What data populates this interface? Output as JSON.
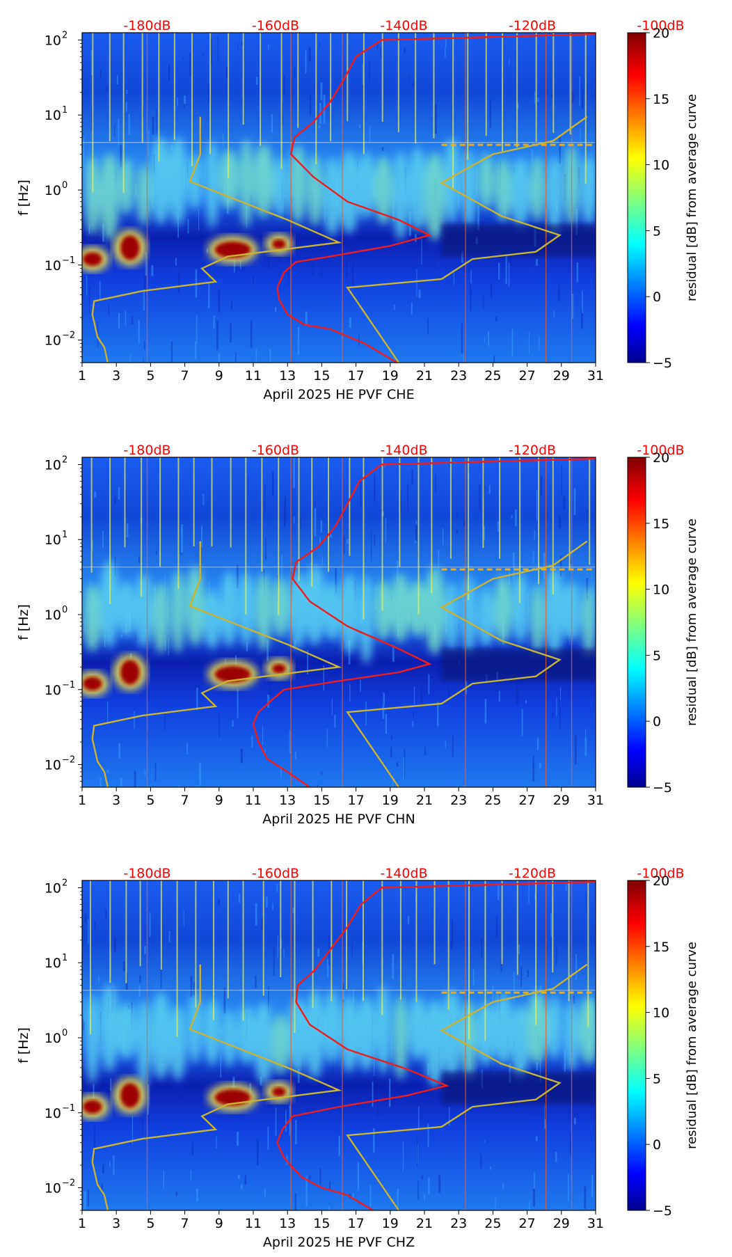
{
  "chart_data": [
    {
      "type": "heatmap",
      "panel": "CHE",
      "xlabel": "April 2025 HE PVF  CHE",
      "ylabel": "f [Hz]",
      "x_ticks": [
        "1",
        "3",
        "5",
        "7",
        "9",
        "11",
        "13",
        "15",
        "17",
        "19",
        "21",
        "23",
        "25",
        "27",
        "29",
        "31"
      ],
      "x_range": [
        1,
        31
      ],
      "y_range_hz": [
        0.005,
        125
      ],
      "y_ticks": [
        {
          "base": "10",
          "exp": "2"
        },
        {
          "base": "10",
          "exp": "1"
        },
        {
          "base": "10",
          "exp": "0"
        },
        {
          "base": "10",
          "exp": "−1"
        },
        {
          "base": "10",
          "exp": "−2"
        }
      ],
      "top_axis_labels": [
        "-180dB",
        "-160dB",
        "-140dB",
        "-120dB",
        "-100dB"
      ],
      "colorbar": {
        "label": "residual [dB] from average curve",
        "min": -5,
        "max": 20,
        "ticks": [
          "20",
          "15",
          "10",
          "5",
          "0",
          "−5"
        ]
      },
      "curves": [
        {
          "name": "average",
          "color": "#ee1c1c",
          "points": [
            [
              19.4,
              0.005
            ],
            [
              17.5,
              0.009
            ],
            [
              15.5,
              0.014
            ],
            [
              14.0,
              0.016
            ],
            [
              13.0,
              0.022
            ],
            [
              12.5,
              0.035
            ],
            [
              12.4,
              0.05
            ],
            [
              12.8,
              0.08
            ],
            [
              13.5,
              0.11
            ],
            [
              15.5,
              0.13
            ],
            [
              19.0,
              0.18
            ],
            [
              21.3,
              0.25
            ],
            [
              19.5,
              0.4
            ],
            [
              16.5,
              0.7
            ],
            [
              14.5,
              1.5
            ],
            [
              13.2,
              3.0
            ],
            [
              13.4,
              5.0
            ],
            [
              14.5,
              8.0
            ],
            [
              15.5,
              15.0
            ],
            [
              16.3,
              30.0
            ],
            [
              17.0,
              60.0
            ],
            [
              18.5,
              100.0
            ],
            [
              31.0,
              120.0
            ]
          ]
        },
        {
          "name": "noise-model",
          "color": "#c8b432",
          "points": [
            [
              2.5,
              0.005
            ],
            [
              2.3,
              0.008
            ],
            [
              1.9,
              0.011
            ],
            [
              1.6,
              0.022
            ],
            [
              1.7,
              0.033
            ],
            [
              4.5,
              0.045
            ],
            [
              8.8,
              0.06
            ],
            [
              8.0,
              0.09
            ],
            [
              9.5,
              0.13
            ],
            [
              16.0,
              0.2
            ],
            [
              13.0,
              0.4
            ],
            [
              7.3,
              1.3
            ],
            [
              7.9,
              3.0
            ],
            [
              7.9,
              9.5
            ],
            [
              19.5,
              0.005
            ],
            [
              16.5,
              0.05
            ],
            [
              22.0,
              0.065
            ],
            [
              23.8,
              0.12
            ],
            [
              27.5,
              0.15
            ],
            [
              28.9,
              0.25
            ],
            [
              25.5,
              0.45
            ],
            [
              22.0,
              1.25
            ],
            [
              25.0,
              3.0
            ],
            [
              28.5,
              4.5
            ],
            [
              30.5,
              9.5
            ]
          ]
        }
      ]
    },
    {
      "type": "heatmap",
      "panel": "CHN",
      "xlabel": "April 2025 HE PVF  CHN",
      "ylabel": "f [Hz]",
      "x_ticks": [
        "1",
        "3",
        "5",
        "7",
        "9",
        "11",
        "13",
        "15",
        "17",
        "19",
        "21",
        "23",
        "25",
        "27",
        "29",
        "31"
      ],
      "x_range": [
        1,
        31
      ],
      "y_range_hz": [
        0.005,
        125
      ],
      "y_ticks": [
        {
          "base": "10",
          "exp": "2"
        },
        {
          "base": "10",
          "exp": "1"
        },
        {
          "base": "10",
          "exp": "0"
        },
        {
          "base": "10",
          "exp": "−1"
        },
        {
          "base": "10",
          "exp": "−2"
        }
      ],
      "top_axis_labels": [
        "-180dB",
        "-160dB",
        "-140dB",
        "-120dB",
        "-100dB"
      ],
      "colorbar": {
        "label": "residual [dB] from average curve",
        "min": -5,
        "max": 20,
        "ticks": [
          "20",
          "15",
          "10",
          "5",
          "0",
          "−5"
        ]
      },
      "curves": [
        {
          "name": "average",
          "color": "#ee1c1c",
          "points": [
            [
              14.3,
              0.005
            ],
            [
              13.0,
              0.008
            ],
            [
              11.8,
              0.012
            ],
            [
              11.3,
              0.02
            ],
            [
              11.0,
              0.035
            ],
            [
              11.3,
              0.05
            ],
            [
              12.0,
              0.07
            ],
            [
              12.8,
              0.1
            ],
            [
              16.0,
              0.13
            ],
            [
              19.5,
              0.17
            ],
            [
              21.3,
              0.22
            ],
            [
              19.5,
              0.35
            ],
            [
              16.5,
              0.7
            ],
            [
              14.3,
              1.5
            ],
            [
              13.3,
              3.0
            ],
            [
              13.5,
              5.0
            ],
            [
              14.8,
              8.0
            ],
            [
              15.8,
              15.0
            ],
            [
              16.5,
              30.0
            ],
            [
              17.2,
              60.0
            ],
            [
              18.5,
              100.0
            ],
            [
              31.0,
              120.0
            ]
          ]
        },
        {
          "name": "noise-model",
          "color": "#c8b432",
          "points": [
            [
              2.5,
              0.005
            ],
            [
              2.3,
              0.008
            ],
            [
              1.9,
              0.011
            ],
            [
              1.6,
              0.022
            ],
            [
              1.7,
              0.033
            ],
            [
              4.5,
              0.045
            ],
            [
              8.8,
              0.06
            ],
            [
              8.0,
              0.09
            ],
            [
              9.5,
              0.13
            ],
            [
              16.0,
              0.2
            ],
            [
              13.0,
              0.4
            ],
            [
              7.3,
              1.3
            ],
            [
              7.9,
              3.0
            ],
            [
              7.9,
              9.5
            ],
            [
              19.5,
              0.005
            ],
            [
              16.5,
              0.05
            ],
            [
              22.0,
              0.065
            ],
            [
              23.8,
              0.12
            ],
            [
              27.5,
              0.15
            ],
            [
              28.9,
              0.25
            ],
            [
              25.5,
              0.45
            ],
            [
              22.0,
              1.25
            ],
            [
              25.0,
              3.0
            ],
            [
              28.5,
              4.5
            ],
            [
              30.5,
              9.5
            ]
          ]
        }
      ]
    },
    {
      "type": "heatmap",
      "panel": "CHZ",
      "xlabel": "April 2025 HE PVF  CHZ",
      "ylabel": "f [Hz]",
      "x_ticks": [
        "1",
        "3",
        "5",
        "7",
        "9",
        "11",
        "13",
        "15",
        "17",
        "19",
        "21",
        "23",
        "25",
        "27",
        "29",
        "31"
      ],
      "x_range": [
        1,
        31
      ],
      "y_range_hz": [
        0.005,
        125
      ],
      "y_ticks": [
        {
          "base": "10",
          "exp": "2"
        },
        {
          "base": "10",
          "exp": "1"
        },
        {
          "base": "10",
          "exp": "0"
        },
        {
          "base": "10",
          "exp": "−1"
        },
        {
          "base": "10",
          "exp": "−2"
        }
      ],
      "top_axis_labels": [
        "-180dB",
        "-160dB",
        "-140dB",
        "-120dB",
        "-100dB"
      ],
      "colorbar": {
        "label": "residual [dB] from average curve",
        "min": -5,
        "max": 20,
        "ticks": [
          "20",
          "15",
          "10",
          "5",
          "0",
          "−5"
        ]
      },
      "curves": [
        {
          "name": "average",
          "color": "#ee1c1c",
          "points": [
            [
              18.0,
              0.005
            ],
            [
              16.5,
              0.008
            ],
            [
              15.0,
              0.01
            ],
            [
              13.8,
              0.014
            ],
            [
              12.8,
              0.025
            ],
            [
              12.4,
              0.04
            ],
            [
              12.7,
              0.06
            ],
            [
              13.3,
              0.09
            ],
            [
              16.0,
              0.12
            ],
            [
              20.0,
              0.17
            ],
            [
              22.3,
              0.23
            ],
            [
              20.0,
              0.38
            ],
            [
              16.5,
              0.7
            ],
            [
              14.3,
              1.5
            ],
            [
              13.5,
              3.0
            ],
            [
              13.6,
              5.0
            ],
            [
              14.6,
              8.0
            ],
            [
              15.5,
              15.0
            ],
            [
              16.5,
              30.0
            ],
            [
              17.3,
              60.0
            ],
            [
              18.5,
              100.0
            ],
            [
              31.0,
              120.0
            ]
          ]
        },
        {
          "name": "noise-model",
          "color": "#c8b432",
          "points": [
            [
              2.5,
              0.005
            ],
            [
              2.3,
              0.008
            ],
            [
              1.9,
              0.011
            ],
            [
              1.6,
              0.022
            ],
            [
              1.7,
              0.033
            ],
            [
              4.5,
              0.045
            ],
            [
              8.8,
              0.06
            ],
            [
              8.0,
              0.09
            ],
            [
              9.5,
              0.13
            ],
            [
              16.0,
              0.2
            ],
            [
              13.0,
              0.4
            ],
            [
              7.3,
              1.3
            ],
            [
              7.9,
              3.0
            ],
            [
              7.9,
              9.5
            ],
            [
              19.5,
              0.005
            ],
            [
              16.5,
              0.05
            ],
            [
              22.0,
              0.065
            ],
            [
              23.8,
              0.12
            ],
            [
              27.5,
              0.15
            ],
            [
              28.9,
              0.25
            ],
            [
              25.5,
              0.45
            ],
            [
              22.0,
              1.25
            ],
            [
              25.0,
              3.0
            ],
            [
              28.5,
              4.5
            ],
            [
              30.5,
              9.5
            ]
          ]
        }
      ]
    }
  ]
}
